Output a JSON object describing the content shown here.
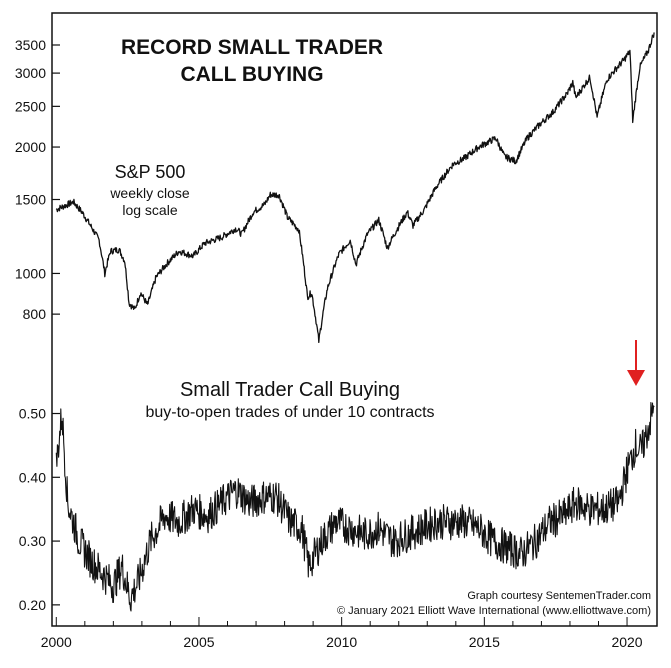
{
  "colors": {
    "line": "#111111",
    "frame": "#111111",
    "arrow": "#e02020",
    "background": "#ffffff"
  },
  "chart_data": [
    {
      "type": "line",
      "title": "RECORD SMALL TRADER\nCALL BUYING",
      "title_lines": [
        "RECORD SMALL TRADER",
        "CALL BUYING"
      ],
      "series_label_lines": [
        "S&P 500",
        "weekly close",
        "log scale"
      ],
      "yscale": "log",
      "ylim": [
        650,
        3800
      ],
      "y_ticks": [
        800,
        1000,
        1500,
        2000,
        2500,
        3000,
        3500
      ],
      "y_tick_labels": [
        "800",
        "1000",
        "1500",
        "2000",
        "2500",
        "3000",
        "3500"
      ],
      "xlim": [
        1999.85,
        2021.05
      ],
      "series": [
        {
          "name": "S&P 500",
          "points": [
            [
              2000.0,
              1420
            ],
            [
              2000.3,
              1450
            ],
            [
              2000.6,
              1480
            ],
            [
              2000.9,
              1400
            ],
            [
              2001.2,
              1300
            ],
            [
              2001.5,
              1200
            ],
            [
              2001.7,
              1000
            ],
            [
              2001.9,
              1130
            ],
            [
              2002.2,
              1140
            ],
            [
              2002.4,
              1070
            ],
            [
              2002.55,
              850
            ],
            [
              2002.75,
              820
            ],
            [
              2002.95,
              900
            ],
            [
              2003.2,
              840
            ],
            [
              2003.5,
              980
            ],
            [
              2003.9,
              1060
            ],
            [
              2004.3,
              1130
            ],
            [
              2004.8,
              1100
            ],
            [
              2005.2,
              1180
            ],
            [
              2005.8,
              1220
            ],
            [
              2006.3,
              1280
            ],
            [
              2006.5,
              1240
            ],
            [
              2006.9,
              1400
            ],
            [
              2007.3,
              1460
            ],
            [
              2007.5,
              1540
            ],
            [
              2007.8,
              1540
            ],
            [
              2008.1,
              1360
            ],
            [
              2008.5,
              1270
            ],
            [
              2008.8,
              880
            ],
            [
              2008.95,
              900
            ],
            [
              2009.2,
              690
            ],
            [
              2009.5,
              920
            ],
            [
              2009.9,
              1110
            ],
            [
              2010.3,
              1200
            ],
            [
              2010.5,
              1050
            ],
            [
              2010.9,
              1240
            ],
            [
              2011.3,
              1340
            ],
            [
              2011.6,
              1150
            ],
            [
              2011.9,
              1260
            ],
            [
              2012.3,
              1400
            ],
            [
              2012.5,
              1300
            ],
            [
              2012.9,
              1420
            ],
            [
              2013.3,
              1600
            ],
            [
              2013.9,
              1820
            ],
            [
              2014.3,
              1880
            ],
            [
              2014.8,
              2000
            ],
            [
              2015.4,
              2100
            ],
            [
              2015.7,
              1900
            ],
            [
              2016.1,
              1850
            ],
            [
              2016.5,
              2100
            ],
            [
              2016.9,
              2250
            ],
            [
              2017.4,
              2420
            ],
            [
              2017.9,
              2680
            ],
            [
              2018.1,
              2850
            ],
            [
              2018.2,
              2620
            ],
            [
              2018.7,
              2930
            ],
            [
              2018.95,
              2350
            ],
            [
              2019.3,
              2900
            ],
            [
              2019.9,
              3230
            ],
            [
              2020.1,
              3380
            ],
            [
              2020.2,
              2300
            ],
            [
              2020.45,
              3100
            ],
            [
              2020.75,
              3400
            ],
            [
              2020.95,
              3750
            ]
          ]
        }
      ]
    },
    {
      "type": "line",
      "title": "Small Trader Call Buying",
      "subtitle": "buy-to-open trades of under 10 contracts",
      "ylim": [
        0.17,
        0.54
      ],
      "y_ticks": [
        0.2,
        0.3,
        0.4,
        0.5
      ],
      "y_tick_labels": [
        "0.20",
        "0.30",
        "0.40",
        "0.50"
      ],
      "xlim": [
        1999.85,
        2021.05
      ],
      "x_ticks": [
        2000,
        2005,
        2010,
        2015,
        2020
      ],
      "x_tick_labels": [
        "2000",
        "2005",
        "2010",
        "2015",
        "2020"
      ],
      "series": [
        {
          "name": "Small Trader Call Buying",
          "points": [
            [
              2000.0,
              0.42
            ],
            [
              2000.2,
              0.5
            ],
            [
              2000.4,
              0.36
            ],
            [
              2000.8,
              0.3
            ],
            [
              2001.2,
              0.27
            ],
            [
              2001.6,
              0.25
            ],
            [
              2002.0,
              0.23
            ],
            [
              2002.3,
              0.26
            ],
            [
              2002.6,
              0.21
            ],
            [
              2002.9,
              0.24
            ],
            [
              2003.3,
              0.3
            ],
            [
              2003.8,
              0.34
            ],
            [
              2004.3,
              0.33
            ],
            [
              2004.8,
              0.35
            ],
            [
              2005.3,
              0.34
            ],
            [
              2005.8,
              0.36
            ],
            [
              2006.3,
              0.38
            ],
            [
              2006.8,
              0.36
            ],
            [
              2007.3,
              0.37
            ],
            [
              2007.7,
              0.37
            ],
            [
              2008.2,
              0.33
            ],
            [
              2008.6,
              0.32
            ],
            [
              2008.85,
              0.26
            ],
            [
              2009.3,
              0.3
            ],
            [
              2009.8,
              0.33
            ],
            [
              2010.3,
              0.32
            ],
            [
              2010.8,
              0.31
            ],
            [
              2011.3,
              0.32
            ],
            [
              2011.8,
              0.3
            ],
            [
              2012.3,
              0.31
            ],
            [
              2012.8,
              0.32
            ],
            [
              2013.3,
              0.33
            ],
            [
              2013.8,
              0.33
            ],
            [
              2014.3,
              0.33
            ],
            [
              2014.8,
              0.32
            ],
            [
              2015.3,
              0.3
            ],
            [
              2015.8,
              0.29
            ],
            [
              2016.3,
              0.28
            ],
            [
              2016.8,
              0.3
            ],
            [
              2017.3,
              0.33
            ],
            [
              2017.8,
              0.34
            ],
            [
              2018.2,
              0.36
            ],
            [
              2018.7,
              0.35
            ],
            [
              2019.2,
              0.35
            ],
            [
              2019.7,
              0.36
            ],
            [
              2020.0,
              0.41
            ],
            [
              2020.3,
              0.45
            ],
            [
              2020.5,
              0.44
            ],
            [
              2020.7,
              0.47
            ],
            [
              2020.95,
              0.51
            ]
          ]
        }
      ],
      "annotations": [
        "Graph courtesy SentemenTrader.com",
        "© January 2021 Elliott Wave International (www.elliottwave.com)"
      ]
    }
  ]
}
